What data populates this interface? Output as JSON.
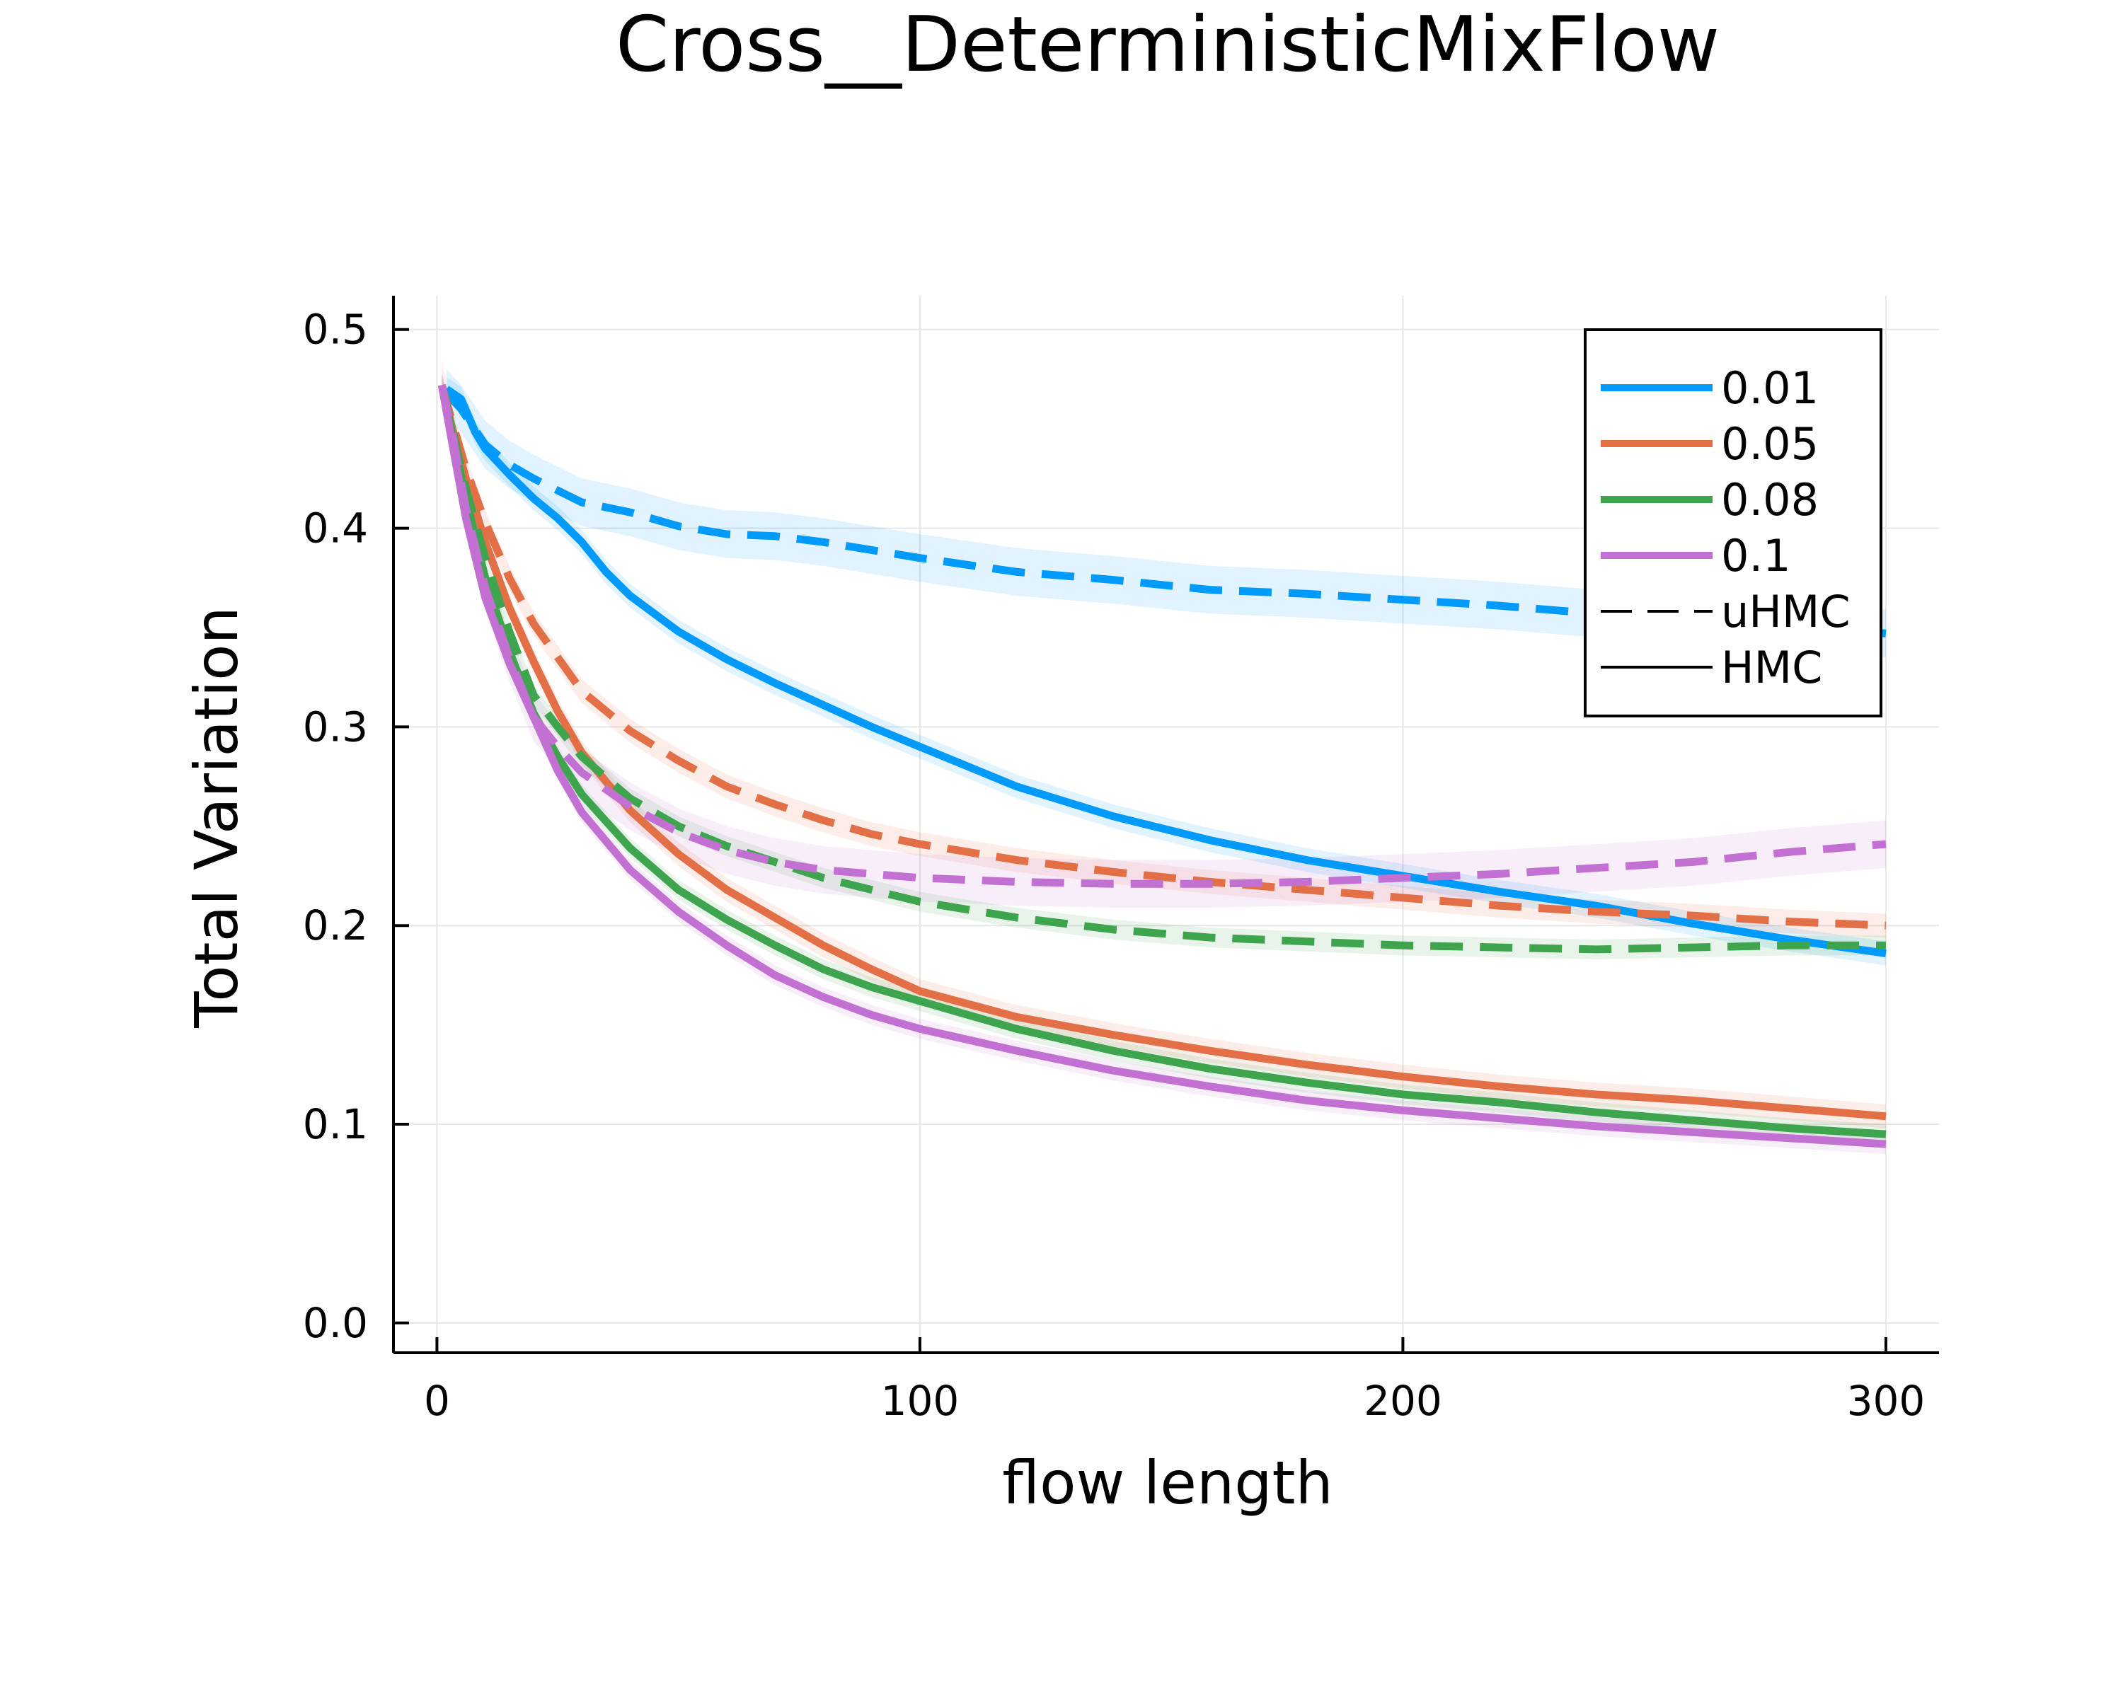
{
  "chart_data": {
    "type": "line",
    "title": "Cross__DeterministicMixFlow",
    "xlabel": "flow length",
    "ylabel": "Total Variation",
    "xlim": [
      -9,
      311
    ],
    "ylim": [
      -0.015,
      0.517
    ],
    "xticks": [
      0,
      100,
      200,
      300
    ],
    "xtick_labels": [
      "0",
      "100",
      "200",
      "300"
    ],
    "yticks": [
      0.0,
      0.1,
      0.2,
      0.3,
      0.4,
      0.5
    ],
    "ytick_labels": [
      "0.0",
      "0.1",
      "0.2",
      "0.3",
      "0.4",
      "0.5"
    ],
    "grid": true,
    "legend_position": "top-right",
    "legend": [
      {
        "label": "0.01",
        "color": "#009AFA",
        "style": "solid"
      },
      {
        "label": "0.05",
        "color": "#E36F47",
        "style": "solid"
      },
      {
        "label": "0.08",
        "color": "#3EA44E",
        "style": "solid"
      },
      {
        "label": "0.1",
        "color": "#C271D2",
        "style": "solid"
      },
      {
        "label": "uHMC",
        "color": "#000000",
        "style": "dashed"
      },
      {
        "label": "HMC",
        "color": "#000000",
        "style": "solid"
      }
    ],
    "series": [
      {
        "group": "0.01",
        "method": "uHMC",
        "color": "#009AFA",
        "style": "dashed",
        "band": 0.012,
        "x": [
          2,
          5,
          10,
          15,
          20,
          30,
          40,
          50,
          60,
          70,
          80,
          90,
          100,
          120,
          140,
          160,
          180,
          200,
          220,
          240,
          260,
          280,
          300
        ],
        "y": [
          0.468,
          0.46,
          0.442,
          0.432,
          0.425,
          0.413,
          0.408,
          0.401,
          0.397,
          0.396,
          0.393,
          0.389,
          0.385,
          0.378,
          0.374,
          0.369,
          0.367,
          0.364,
          0.361,
          0.357,
          0.354,
          0.352,
          0.347
        ]
      },
      {
        "group": "0.01",
        "method": "HMC",
        "color": "#009AFA",
        "style": "solid",
        "band": 0.006,
        "x": [
          2,
          5,
          8,
          10,
          15,
          20,
          25,
          30,
          35,
          40,
          50,
          60,
          70,
          80,
          90,
          100,
          120,
          140,
          160,
          180,
          200,
          220,
          240,
          260,
          280,
          300
        ],
        "y": [
          0.47,
          0.465,
          0.448,
          0.44,
          0.427,
          0.415,
          0.405,
          0.393,
          0.378,
          0.366,
          0.348,
          0.334,
          0.322,
          0.311,
          0.3,
          0.29,
          0.27,
          0.255,
          0.243,
          0.233,
          0.225,
          0.217,
          0.21,
          0.201,
          0.193,
          0.186
        ]
      },
      {
        "group": "0.05",
        "method": "uHMC",
        "color": "#E36F47",
        "style": "dashed",
        "band": 0.006,
        "x": [
          1,
          3,
          6,
          10,
          15,
          20,
          25,
          30,
          40,
          50,
          60,
          70,
          80,
          90,
          100,
          120,
          140,
          160,
          180,
          200,
          220,
          240,
          260,
          280,
          300
        ],
        "y": [
          0.472,
          0.455,
          0.43,
          0.403,
          0.375,
          0.352,
          0.335,
          0.318,
          0.298,
          0.283,
          0.27,
          0.261,
          0.253,
          0.246,
          0.241,
          0.233,
          0.227,
          0.222,
          0.218,
          0.214,
          0.21,
          0.207,
          0.205,
          0.202,
          0.2
        ]
      },
      {
        "group": "0.05",
        "method": "HMC",
        "color": "#E36F47",
        "style": "solid",
        "band": 0.006,
        "x": [
          1,
          3,
          6,
          10,
          15,
          20,
          25,
          30,
          40,
          50,
          60,
          70,
          80,
          90,
          100,
          120,
          140,
          160,
          180,
          200,
          220,
          240,
          260,
          280,
          300
        ],
        "y": [
          0.472,
          0.452,
          0.425,
          0.393,
          0.36,
          0.333,
          0.308,
          0.287,
          0.258,
          0.236,
          0.218,
          0.204,
          0.19,
          0.178,
          0.167,
          0.154,
          0.145,
          0.137,
          0.13,
          0.124,
          0.119,
          0.115,
          0.112,
          0.108,
          0.104
        ]
      },
      {
        "group": "0.08",
        "method": "uHMC",
        "color": "#3EA44E",
        "style": "dashed",
        "band": 0.005,
        "x": [
          1,
          3,
          6,
          10,
          15,
          20,
          25,
          30,
          40,
          50,
          60,
          70,
          80,
          90,
          100,
          120,
          140,
          160,
          180,
          200,
          220,
          240,
          260,
          280,
          300
        ],
        "y": [
          0.472,
          0.452,
          0.42,
          0.385,
          0.348,
          0.316,
          0.3,
          0.285,
          0.264,
          0.25,
          0.24,
          0.232,
          0.224,
          0.218,
          0.212,
          0.204,
          0.198,
          0.194,
          0.192,
          0.19,
          0.189,
          0.188,
          0.189,
          0.19,
          0.19
        ]
      },
      {
        "group": "0.08",
        "method": "HMC",
        "color": "#3EA44E",
        "style": "solid",
        "band": 0.005,
        "x": [
          1,
          3,
          6,
          10,
          15,
          20,
          25,
          30,
          40,
          50,
          60,
          70,
          80,
          90,
          100,
          120,
          140,
          160,
          180,
          200,
          220,
          240,
          260,
          280,
          300
        ],
        "y": [
          0.472,
          0.45,
          0.415,
          0.375,
          0.338,
          0.307,
          0.285,
          0.266,
          0.239,
          0.218,
          0.203,
          0.19,
          0.178,
          0.169,
          0.162,
          0.148,
          0.137,
          0.128,
          0.121,
          0.115,
          0.111,
          0.106,
          0.102,
          0.098,
          0.095
        ]
      },
      {
        "group": "0.1",
        "method": "uHMC",
        "color": "#C271D2",
        "style": "dashed",
        "band": 0.012,
        "x": [
          1,
          3,
          6,
          10,
          15,
          20,
          25,
          30,
          40,
          50,
          60,
          70,
          80,
          90,
          100,
          120,
          140,
          160,
          180,
          200,
          220,
          240,
          260,
          280,
          300
        ],
        "y": [
          0.472,
          0.45,
          0.41,
          0.37,
          0.335,
          0.305,
          0.29,
          0.277,
          0.26,
          0.247,
          0.238,
          0.232,
          0.228,
          0.226,
          0.224,
          0.222,
          0.221,
          0.221,
          0.222,
          0.224,
          0.226,
          0.229,
          0.232,
          0.237,
          0.241
        ]
      },
      {
        "group": "0.1",
        "method": "HMC",
        "color": "#C271D2",
        "style": "solid",
        "band": 0.005,
        "x": [
          1,
          3,
          6,
          10,
          15,
          20,
          25,
          30,
          40,
          50,
          60,
          70,
          80,
          90,
          100,
          120,
          140,
          160,
          180,
          200,
          220,
          240,
          260,
          280,
          300
        ],
        "y": [
          0.472,
          0.445,
          0.405,
          0.365,
          0.332,
          0.305,
          0.278,
          0.257,
          0.228,
          0.207,
          0.19,
          0.175,
          0.164,
          0.155,
          0.148,
          0.137,
          0.127,
          0.119,
          0.112,
          0.107,
          0.103,
          0.099,
          0.096,
          0.093,
          0.09
        ]
      }
    ]
  }
}
